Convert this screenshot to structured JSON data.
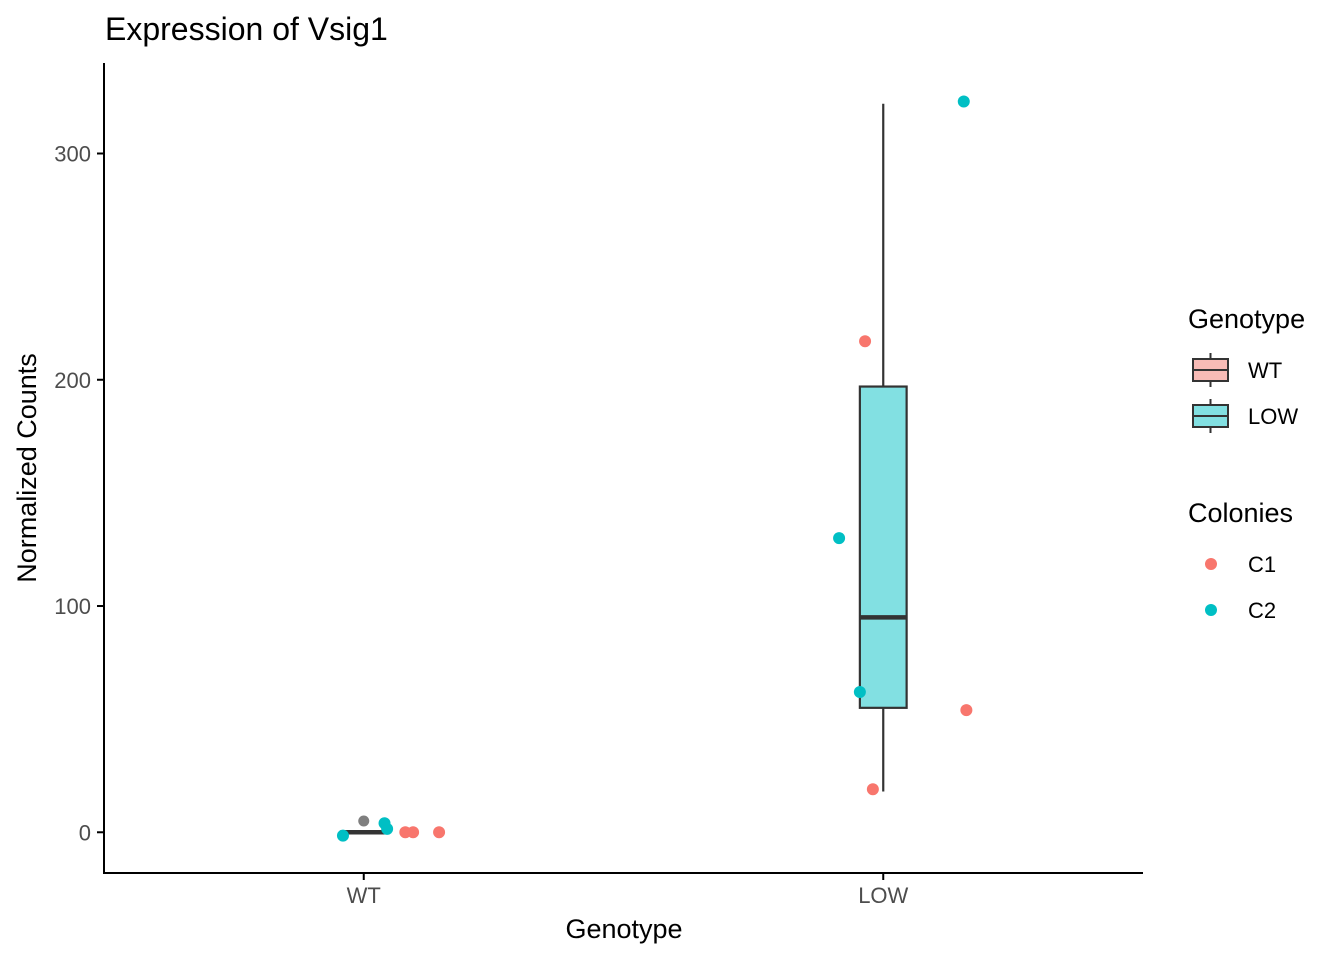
{
  "chart_data": {
    "type": "box",
    "title": "Expression of Vsig1",
    "xlabel": "Genotype",
    "ylabel": "Normalized Counts",
    "categories": [
      "WT",
      "LOW"
    ],
    "ylim": [
      -18,
      340
    ],
    "yticks": [
      0,
      100,
      200,
      300
    ],
    "grid": false,
    "boxes": [
      {
        "category": "WT",
        "fill": "#f8bbb6",
        "q1": 0,
        "median": 0,
        "q3": 0,
        "whisker_low": 0,
        "whisker_high": 0,
        "outliers": [
          5
        ]
      },
      {
        "category": "LOW",
        "fill": "#82e0e2",
        "q1": 55,
        "median": 95,
        "q3": 197,
        "whisker_low": 18,
        "whisker_high": 322,
        "outliers": []
      }
    ],
    "points": [
      {
        "category": "WT",
        "jitter": -0.04,
        "y": -1.5,
        "colony": "C2"
      },
      {
        "category": "WT",
        "jitter": 0.04,
        "y": 4,
        "colony": "C2"
      },
      {
        "category": "WT",
        "jitter": 0.045,
        "y": 1.5,
        "colony": "C2"
      },
      {
        "category": "WT",
        "jitter": 0.08,
        "y": 0,
        "colony": "C1"
      },
      {
        "category": "WT",
        "jitter": 0.095,
        "y": 0,
        "colony": "C1"
      },
      {
        "category": "WT",
        "jitter": 0.145,
        "y": 0,
        "colony": "C1"
      },
      {
        "category": "LOW",
        "jitter": -0.085,
        "y": 130,
        "colony": "C2"
      },
      {
        "category": "LOW",
        "jitter": -0.045,
        "y": 62,
        "colony": "C2"
      },
      {
        "category": "LOW",
        "jitter": 0.155,
        "y": 323,
        "colony": "C2"
      },
      {
        "category": "LOW",
        "jitter": -0.035,
        "y": 217,
        "colony": "C1"
      },
      {
        "category": "LOW",
        "jitter": -0.02,
        "y": 19,
        "colony": "C1"
      },
      {
        "category": "LOW",
        "jitter": 0.16,
        "y": 54,
        "colony": "C1"
      }
    ],
    "legend": {
      "position": "right",
      "genotype": {
        "title": "Genotype",
        "items": [
          {
            "label": "WT",
            "fill": "#f8bbb6"
          },
          {
            "label": "LOW",
            "fill": "#82e0e2"
          }
        ]
      },
      "colonies": {
        "title": "Colonies",
        "items": [
          {
            "label": "C1",
            "color": "#f8766d"
          },
          {
            "label": "C2",
            "color": "#00bfc4"
          }
        ]
      }
    },
    "colors": {
      "C1": "#f8766d",
      "C2": "#00bfc4",
      "outlier": "#7f7f7f",
      "box_stroke": "#333333",
      "axis": "#000000"
    }
  }
}
